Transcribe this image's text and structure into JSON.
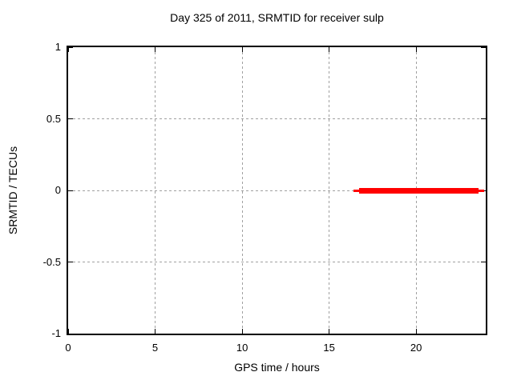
{
  "figure": {
    "background_color": "#ffffff",
    "text_color": "#000000"
  },
  "chart_data": {
    "type": "line",
    "title": "Day 325 of 2011, SRMTID for receiver sulp",
    "xlabel": "GPS time / hours",
    "ylabel": "SRMTID / TECUs",
    "xlim": [
      0,
      24
    ],
    "ylim": [
      -1,
      1
    ],
    "xticks": [
      {
        "value": 0,
        "label": "0"
      },
      {
        "value": 5,
        "label": "5"
      },
      {
        "value": 10,
        "label": "10"
      },
      {
        "value": 15,
        "label": "15"
      },
      {
        "value": 20,
        "label": "20"
      }
    ],
    "yticks": [
      {
        "value": 1,
        "label": "1"
      },
      {
        "value": 0.5,
        "label": "0.5"
      },
      {
        "value": 0,
        "label": "0"
      },
      {
        "value": -0.5,
        "label": "-0.5"
      },
      {
        "value": -1,
        "label": "-1"
      }
    ],
    "grid": true,
    "grid_style": "dashed",
    "grid_color": "#a0a0a0",
    "border_color": "#000000",
    "legend": "none",
    "series": [
      {
        "name": "SRMTID",
        "color": "#ff0000",
        "shape": "horizontal-segment",
        "y": 0,
        "x_start": 16.4,
        "x_end": 23.9,
        "segments": [
          {
            "x1": 16.4,
            "x2": 16.7,
            "thickness_px": 3
          },
          {
            "x1": 16.7,
            "x2": 23.6,
            "thickness_px": 7
          },
          {
            "x1": 23.6,
            "x2": 23.9,
            "thickness_px": 3
          }
        ]
      }
    ]
  }
}
